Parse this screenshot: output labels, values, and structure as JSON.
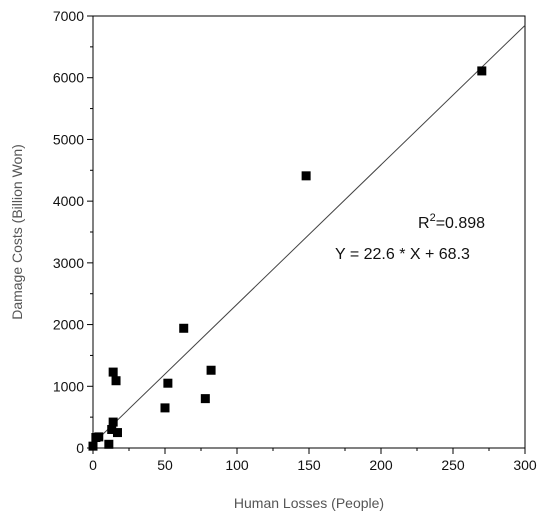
{
  "chart_data": {
    "type": "scatter",
    "xlabel": "Human Losses (People)",
    "ylabel": "Damage Costs (Billion Won)",
    "xlim": [
      0,
      300
    ],
    "ylim": [
      0,
      7000
    ],
    "x_ticks": [
      "0",
      "50",
      "100",
      "150",
      "200",
      "250",
      "300"
    ],
    "y_ticks": [
      "0",
      "1000",
      "2000",
      "3000",
      "4000",
      "5000",
      "6000",
      "7000"
    ],
    "grid": false,
    "points": [
      {
        "x": 0,
        "y": 30
      },
      {
        "x": 2,
        "y": 170
      },
      {
        "x": 4,
        "y": 180
      },
      {
        "x": 11,
        "y": 60
      },
      {
        "x": 13,
        "y": 300
      },
      {
        "x": 14,
        "y": 420
      },
      {
        "x": 14,
        "y": 1230
      },
      {
        "x": 16,
        "y": 1090
      },
      {
        "x": 17,
        "y": 250
      },
      {
        "x": 50,
        "y": 650
      },
      {
        "x": 52,
        "y": 1050
      },
      {
        "x": 63,
        "y": 1940
      },
      {
        "x": 78,
        "y": 800
      },
      {
        "x": 82,
        "y": 1260
      },
      {
        "x": 148,
        "y": 4410
      },
      {
        "x": 270,
        "y": 6110
      }
    ],
    "fit": {
      "slope": 22.6,
      "intercept": 68.3,
      "x_start": 0,
      "x_end": 300
    },
    "annotations": {
      "r2_prefix": "R",
      "r2_sup": "2",
      "r2_value": "=0.898",
      "equation": "Y = 22.6 * X + 68.3"
    }
  }
}
